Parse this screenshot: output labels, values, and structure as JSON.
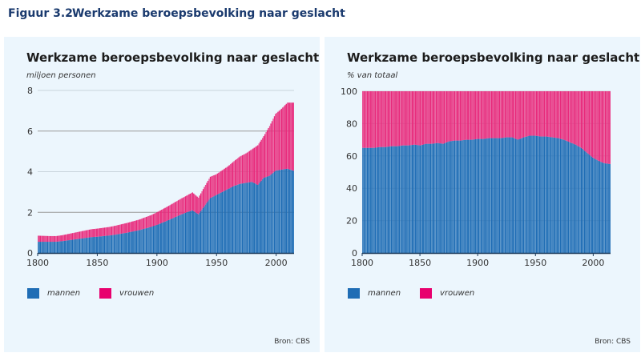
{
  "figure": {
    "number": "Figuur 3.2",
    "title": "Werkzame beroepsbevolking naar geslacht"
  },
  "colors": {
    "mannen": "#1f6db5",
    "vrouwen": "#e8297b",
    "panel_bg": "#ecf6fd",
    "grid": "#a8a8a8"
  },
  "legend": {
    "men": "mannen",
    "women": "vrouwen"
  },
  "source": "Bron: CBS",
  "chart_data": [
    {
      "type": "bar",
      "stacked": true,
      "title": "Werkzame beroepsbevolking naar geslacht",
      "ylabel": "miljoen personen",
      "xlabel": "",
      "xlim": [
        1800,
        2015
      ],
      "ylim": [
        0,
        8
      ],
      "xticks": [
        1800,
        1850,
        1900,
        1950,
        2000
      ],
      "yticks": [
        0,
        2,
        4,
        6,
        8
      ],
      "grid": true,
      "legend_position": "bottom-left",
      "x": [
        1800,
        1805,
        1810,
        1815,
        1820,
        1825,
        1830,
        1835,
        1840,
        1845,
        1850,
        1855,
        1860,
        1865,
        1870,
        1875,
        1880,
        1885,
        1890,
        1895,
        1900,
        1905,
        1910,
        1915,
        1920,
        1925,
        1930,
        1935,
        1940,
        1945,
        1950,
        1955,
        1960,
        1965,
        1970,
        1975,
        1980,
        1985,
        1990,
        1995,
        2000,
        2005,
        2010,
        2015
      ],
      "series": [
        {
          "name": "mannen",
          "values": [
            0.55,
            0.55,
            0.55,
            0.55,
            0.58,
            0.62,
            0.66,
            0.7,
            0.74,
            0.78,
            0.8,
            0.83,
            0.86,
            0.9,
            0.95,
            1.0,
            1.06,
            1.12,
            1.2,
            1.28,
            1.38,
            1.5,
            1.62,
            1.75,
            1.88,
            2.0,
            2.1,
            1.9,
            2.3,
            2.7,
            2.85,
            3.0,
            3.15,
            3.3,
            3.4,
            3.45,
            3.5,
            3.35,
            3.7,
            3.8,
            4.05,
            4.1,
            4.15,
            4.05
          ]
        },
        {
          "name": "vrouwen",
          "values": [
            0.3,
            0.29,
            0.28,
            0.28,
            0.29,
            0.31,
            0.33,
            0.35,
            0.37,
            0.39,
            0.4,
            0.41,
            0.42,
            0.44,
            0.46,
            0.48,
            0.5,
            0.52,
            0.55,
            0.58,
            0.62,
            0.66,
            0.7,
            0.74,
            0.78,
            0.82,
            0.88,
            0.82,
            0.95,
            1.05,
            1.02,
            1.07,
            1.12,
            1.22,
            1.35,
            1.45,
            1.6,
            1.95,
            2.05,
            2.45,
            2.8,
            3.0,
            3.25,
            3.35
          ]
        }
      ]
    },
    {
      "type": "bar",
      "stacked": true,
      "title": "Werkzame beroepsbevolking naar geslacht",
      "ylabel": "% van totaal",
      "xlabel": "",
      "xlim": [
        1800,
        2015
      ],
      "ylim": [
        0,
        100
      ],
      "xticks": [
        1800,
        1850,
        1900,
        1950,
        2000
      ],
      "yticks": [
        0,
        20,
        40,
        60,
        80,
        100
      ],
      "grid": true,
      "legend_position": "bottom-left",
      "x": [
        1800,
        1805,
        1810,
        1815,
        1820,
        1825,
        1830,
        1835,
        1840,
        1845,
        1850,
        1855,
        1860,
        1865,
        1870,
        1875,
        1880,
        1885,
        1890,
        1895,
        1900,
        1905,
        1910,
        1915,
        1920,
        1925,
        1930,
        1935,
        1940,
        1945,
        1950,
        1955,
        1960,
        1965,
        1970,
        1975,
        1980,
        1985,
        1990,
        1995,
        2000,
        2005,
        2010,
        2015
      ],
      "series": [
        {
          "name": "mannen",
          "values": [
            65,
            65,
            65,
            65.5,
            65.5,
            66,
            66,
            66.5,
            66.5,
            67,
            66.5,
            67.5,
            67.5,
            68,
            67.5,
            69,
            69.5,
            69.5,
            70,
            70,
            70.5,
            70.5,
            71,
            71,
            71,
            71.5,
            71.5,
            70,
            71.5,
            72.5,
            72.5,
            72,
            72,
            71.5,
            71,
            70,
            68.5,
            67,
            65,
            62,
            59,
            57,
            55.5,
            55
          ]
        },
        {
          "name": "vrouwen",
          "values": [
            35,
            35,
            35,
            34.5,
            34.5,
            34,
            34,
            33.5,
            33.5,
            33,
            33.5,
            32.5,
            32.5,
            32,
            32.5,
            31,
            30.5,
            30.5,
            30,
            30,
            29.5,
            29.5,
            29,
            29,
            29,
            28.5,
            28.5,
            30,
            28.5,
            27.5,
            27.5,
            28,
            28,
            28.5,
            29,
            30,
            31.5,
            33,
            35,
            38,
            41,
            43,
            44.5,
            45
          ]
        }
      ]
    }
  ]
}
